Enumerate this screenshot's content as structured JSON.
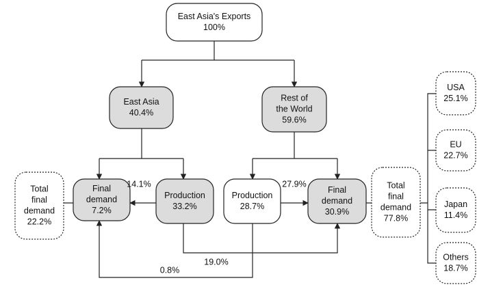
{
  "nodes": [
    {
      "lines": [
        "East Asia's Exports",
        "100%"
      ]
    },
    {
      "lines": [
        "East Asia",
        "40.4%"
      ]
    },
    {
      "lines": [
        "Rest of",
        "the World",
        "59.6%"
      ]
    },
    {
      "lines": [
        "Final",
        "demand",
        "7.2%"
      ]
    },
    {
      "lines": [
        "Production",
        "33.2%"
      ]
    },
    {
      "lines": [
        "Production",
        "28.7%"
      ]
    },
    {
      "lines": [
        "Final",
        "demand",
        "30.9%"
      ]
    },
    {
      "lines": [
        "Total",
        "final",
        "demand",
        "22.2%"
      ]
    },
    {
      "lines": [
        "Total",
        "final",
        "demand",
        "77.8%"
      ]
    },
    {
      "lines": [
        "USA",
        "25.1%"
      ]
    },
    {
      "lines": [
        "EU",
        "22.7%"
      ]
    },
    {
      "lines": [
        "Japan",
        "11.4%"
      ]
    },
    {
      "lines": [
        "Others",
        "18.7%"
      ]
    }
  ],
  "edge_labels": [
    "14.1%",
    "27.9%",
    "19.0%",
    "0.8%"
  ]
}
